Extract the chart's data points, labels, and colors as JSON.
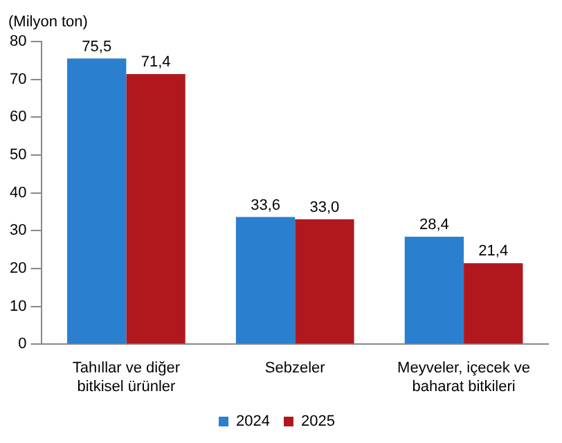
{
  "chart_data": {
    "type": "bar",
    "ylabel": "(Milyon ton)",
    "categories": [
      "Tahıllar ve diğer bitkisel ürünler",
      "Sebzeler",
      "Meyveler, içecek ve baharat bitkileri"
    ],
    "series": [
      {
        "name": "2024",
        "color": "#2a7fcf",
        "values": [
          75.5,
          33.6,
          28.4
        ],
        "value_labels": [
          "75,5",
          "33,6",
          "28,4"
        ]
      },
      {
        "name": "2025",
        "color": "#b0181e",
        "values": [
          71.4,
          33.0,
          21.4
        ],
        "value_labels": [
          "71,4",
          "33,0",
          "21,4"
        ]
      }
    ],
    "ylim": [
      0,
      80
    ],
    "yticks": [
      0,
      10,
      20,
      30,
      40,
      50,
      60,
      70,
      80
    ],
    "grid": false,
    "legend": "bottom"
  }
}
